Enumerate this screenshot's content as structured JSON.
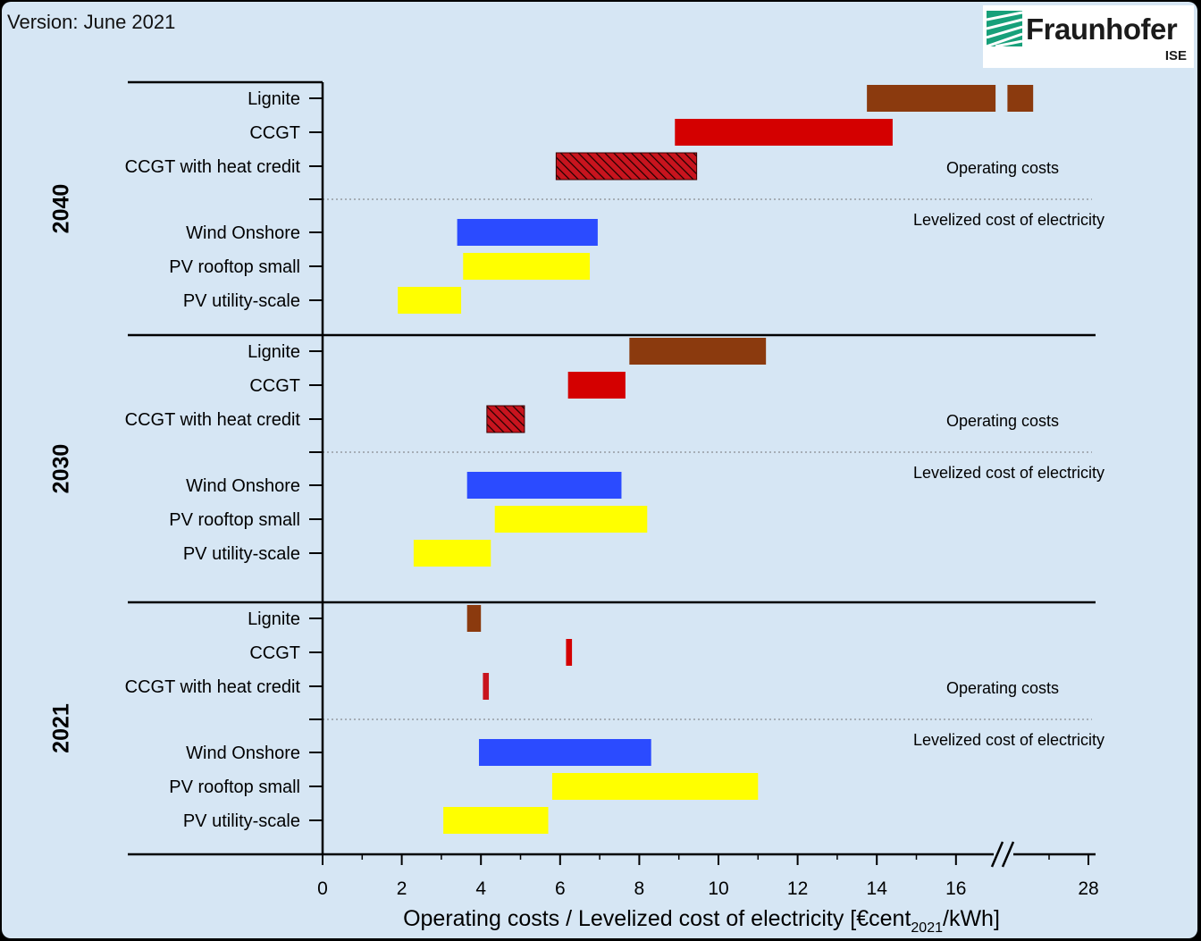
{
  "header": {
    "version": "Version: June 2021",
    "logo_name": "Fraunhofer",
    "logo_sub": "ISE"
  },
  "chart_data": {
    "type": "bar",
    "orientation": "horizontal-range",
    "xlabel_main": "Operating costs / Levelized cost of electricity [€cent",
    "xlabel_sub": "2021",
    "xlabel_end": "/kWh]",
    "x_ticks": [
      "0",
      "2",
      "4",
      "6",
      "8",
      "10",
      "12",
      "14",
      "16",
      "28"
    ],
    "x_axis_break_between": [
      16,
      28
    ],
    "axis_break_mark": "//",
    "grid": false,
    "divider_labels": {
      "above": "Operating costs",
      "below": "Levelized cost of electricity"
    },
    "colors": {
      "Lignite": "#8b3a0e",
      "CCGT": "#d40000",
      "CCGT with heat credit": "#c8141e",
      "Wind Onshore": "#2b4bff",
      "PV rooftop small": "#ffff00",
      "PV utility-scale": "#ffff00"
    },
    "groups": [
      {
        "year": "2040",
        "bars": [
          {
            "label": "Lignite",
            "segments": [
              [
                13.75,
                17.0
              ],
              [
                17.3,
                17.95
              ]
            ],
            "pattern": "solid"
          },
          {
            "label": "CCGT",
            "segments": [
              [
                8.9,
                14.4
              ]
            ],
            "pattern": "solid"
          },
          {
            "label": "CCGT with heat credit",
            "segments": [
              [
                5.9,
                9.45
              ]
            ],
            "pattern": "hatched"
          },
          {
            "label": "Wind Onshore",
            "segments": [
              [
                3.4,
                6.95
              ]
            ],
            "pattern": "solid"
          },
          {
            "label": "PV rooftop small",
            "segments": [
              [
                3.55,
                6.75
              ]
            ],
            "pattern": "solid"
          },
          {
            "label": "PV utility-scale",
            "segments": [
              [
                1.9,
                3.5
              ]
            ],
            "pattern": "solid"
          }
        ]
      },
      {
        "year": "2030",
        "bars": [
          {
            "label": "Lignite",
            "segments": [
              [
                7.75,
                11.2
              ]
            ],
            "pattern": "solid"
          },
          {
            "label": "CCGT",
            "segments": [
              [
                6.2,
                7.65
              ]
            ],
            "pattern": "solid"
          },
          {
            "label": "CCGT with heat credit",
            "segments": [
              [
                4.15,
                5.1
              ]
            ],
            "pattern": "hatched"
          },
          {
            "label": "Wind Onshore",
            "segments": [
              [
                3.65,
                7.55
              ]
            ],
            "pattern": "solid"
          },
          {
            "label": "PV rooftop small",
            "segments": [
              [
                4.35,
                8.2
              ]
            ],
            "pattern": "solid"
          },
          {
            "label": "PV utility-scale",
            "segments": [
              [
                2.3,
                4.25
              ]
            ],
            "pattern": "solid"
          }
        ]
      },
      {
        "year": "2021",
        "bars": [
          {
            "label": "Lignite",
            "segments": [
              [
                3.65,
                4.0
              ]
            ],
            "pattern": "solid"
          },
          {
            "label": "CCGT",
            "segments": [
              [
                6.15,
                6.3
              ]
            ],
            "pattern": "solid"
          },
          {
            "label": "CCGT with heat credit",
            "segments": [
              [
                4.05,
                4.2
              ]
            ],
            "pattern": "solid"
          },
          {
            "label": "Wind Onshore",
            "segments": [
              [
                3.95,
                8.3
              ]
            ],
            "pattern": "solid"
          },
          {
            "label": "PV rooftop small",
            "segments": [
              [
                5.8,
                11.0
              ]
            ],
            "pattern": "solid"
          },
          {
            "label": "PV utility-scale",
            "segments": [
              [
                3.05,
                5.7
              ]
            ],
            "pattern": "solid"
          }
        ]
      }
    ]
  }
}
